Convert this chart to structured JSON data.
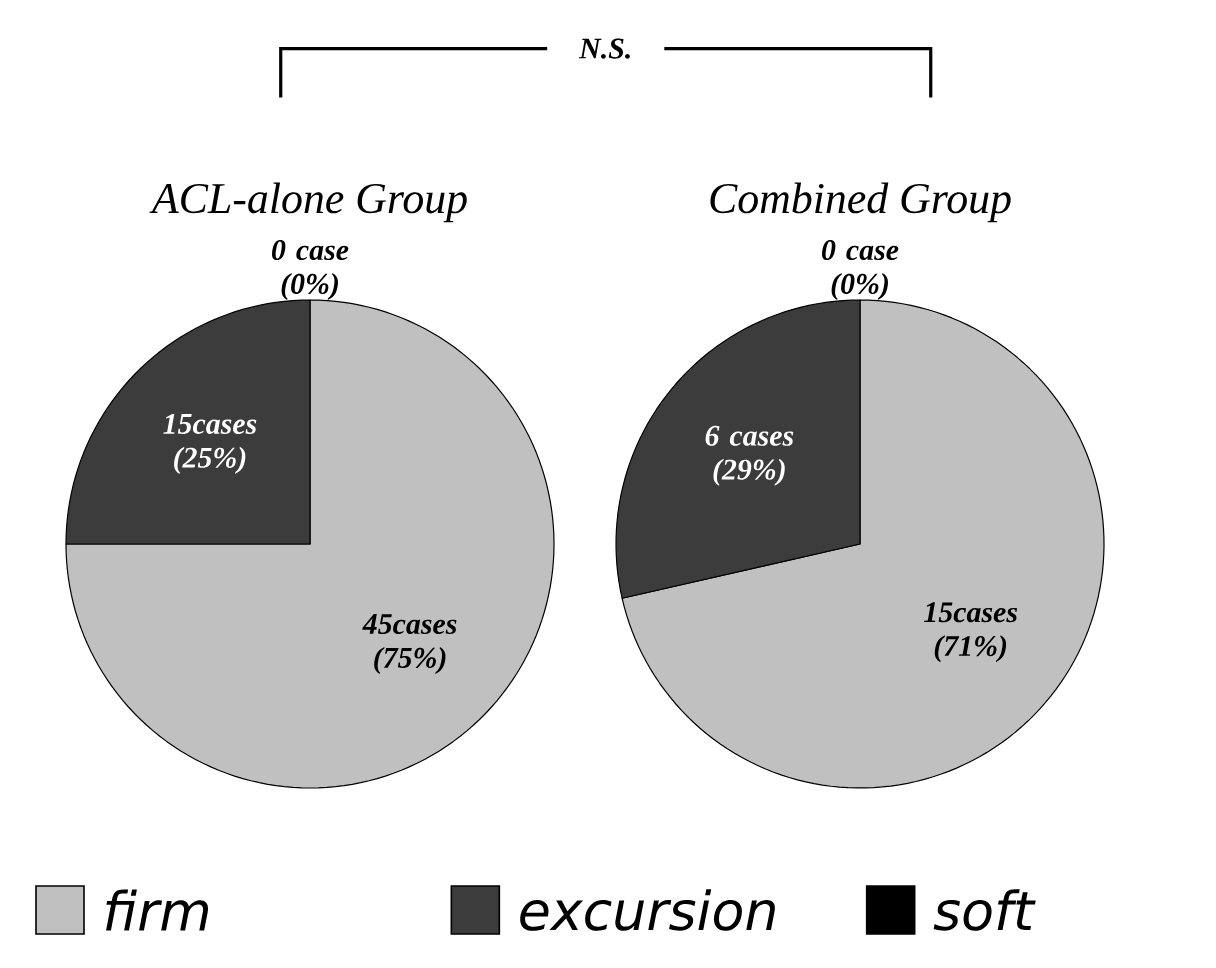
{
  "chart_data": [
    {
      "type": "pie",
      "title": "ACL-alone Group",
      "categories": [
        "firm",
        "excursion",
        "soft"
      ],
      "values": [
        45,
        15,
        0
      ],
      "colors": [
        "#c0c0c0",
        "#3c3c3c",
        "#000000"
      ],
      "value_labels": [
        "45cases (75%)",
        "15cases (25%)",
        "0 case (0%)"
      ],
      "legend": "bottom",
      "annotations": [
        "N.S."
      ]
    },
    {
      "type": "pie",
      "title": "Combined Group",
      "categories": [
        null,
        null,
        null
      ],
      "values": [
        15,
        6,
        0
      ],
      "colors": [
        "#c0c0c0",
        "#3c3c3c",
        "#000000"
      ],
      "value_labels": [
        "15cases (71%)",
        "6 cases (29%)",
        "0 case (0%)"
      ]
    }
  ]
}
